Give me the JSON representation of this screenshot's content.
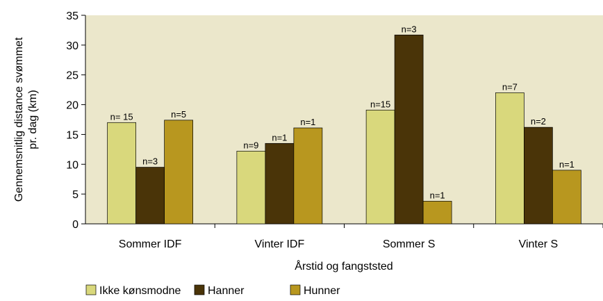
{
  "chart_data": {
    "type": "bar",
    "y_label": [
      "Gennemsnitlig distance svømmet",
      "pr. dag (km)"
    ],
    "x_label": "Årstid og fangststed",
    "categories": [
      "Sommer IDF",
      "Vinter IDF",
      "Sommer S",
      "Vinter S"
    ],
    "series": [
      {
        "name": "Ikke kønsmodne",
        "color": "#d9d87c",
        "values": [
          17,
          12.2,
          19.1,
          22
        ],
        "sample_labels": [
          "n= 15",
          "n=9",
          "n=15",
          "n=7"
        ]
      },
      {
        "name": "Hanner",
        "color": "#4a3408",
        "values": [
          9.5,
          13.5,
          31.7,
          16.2
        ],
        "sample_labels": [
          "n=3",
          "n=1",
          "n=3",
          "n=2"
        ]
      },
      {
        "name": "Hunner",
        "color": "#b8971f",
        "values": [
          17.4,
          16.1,
          3.8,
          9
        ],
        "sample_labels": [
          "n=5",
          "n=1",
          "n=1",
          "n=1"
        ]
      }
    ],
    "ylim": [
      0,
      35
    ],
    "yticks": [
      0,
      5,
      10,
      15,
      20,
      25,
      30,
      35
    ],
    "plot_background": "#ebe7cb"
  }
}
